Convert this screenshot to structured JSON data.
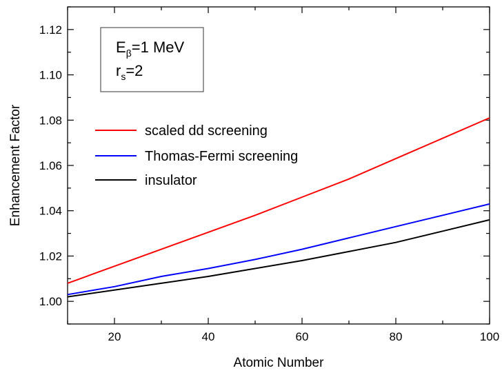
{
  "chart_data": {
    "type": "line",
    "xlabel": "Atomic Number",
    "ylabel": "Enhancement Factor",
    "xlim": [
      10,
      100
    ],
    "ylim": [
      0.99,
      1.13
    ],
    "xticks": [
      20,
      40,
      60,
      80,
      100
    ],
    "yticks": [
      1.0,
      1.02,
      1.04,
      1.06,
      1.08,
      1.1,
      1.12
    ],
    "ytick_labels": [
      "1.00",
      "1.02",
      "1.04",
      "1.06",
      "1.08",
      "1.10",
      "1.12"
    ],
    "grid": false,
    "legend_position": "center-left",
    "series": [
      {
        "name": "scaled dd screening",
        "color": "#ff0000",
        "x": [
          10,
          20,
          30,
          40,
          50,
          60,
          70,
          80,
          90,
          100
        ],
        "y": [
          1.008,
          1.0155,
          1.023,
          1.0305,
          1.038,
          1.046,
          1.054,
          1.063,
          1.072,
          1.081
        ]
      },
      {
        "name": "Thomas-Fermi screening",
        "color": "#0000ff",
        "x": [
          10,
          20,
          30,
          40,
          50,
          60,
          70,
          80,
          90,
          100
        ],
        "y": [
          1.003,
          1.0065,
          1.011,
          1.0145,
          1.0185,
          1.023,
          1.028,
          1.033,
          1.038,
          1.043
        ]
      },
      {
        "name": "insulator",
        "color": "#000000",
        "x": [
          10,
          20,
          30,
          40,
          50,
          60,
          70,
          80,
          90,
          100
        ],
        "y": [
          1.002,
          1.005,
          1.008,
          1.011,
          1.0145,
          1.018,
          1.022,
          1.026,
          1.031,
          1.036
        ]
      }
    ],
    "annotation": {
      "line1_main": "E",
      "line1_sub": "β",
      "line1_rest": "=1 MeV",
      "line2_main": "r",
      "line2_sub": "s",
      "line2_rest": "=2"
    }
  }
}
